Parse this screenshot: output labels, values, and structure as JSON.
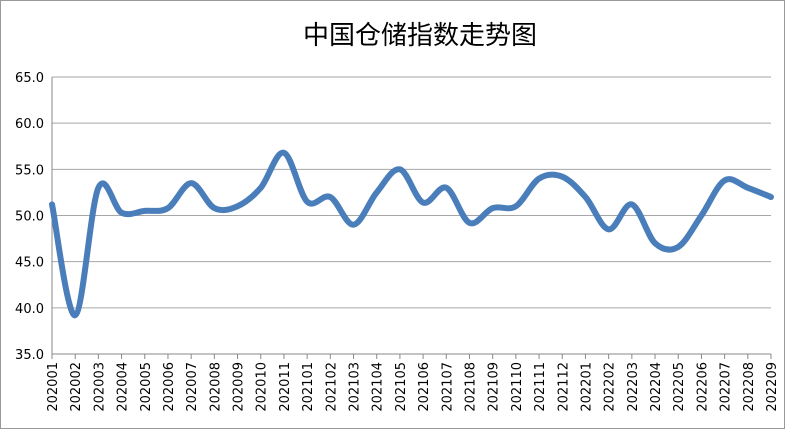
{
  "chart_data": {
    "type": "line",
    "title": "中国仓储指数走势图",
    "categories": [
      "202001",
      "202002",
      "202003",
      "202004",
      "202005",
      "202006",
      "202007",
      "202008",
      "202009",
      "202010",
      "202011",
      "202101",
      "202102",
      "202103",
      "202104",
      "202105",
      "202106",
      "202107",
      "202108",
      "202109",
      "202110",
      "202111",
      "202112",
      "202201",
      "202202",
      "202203",
      "202204",
      "202205",
      "202206",
      "202207",
      "202208",
      "202209"
    ],
    "series": [
      {
        "color": "#4a7ebb",
        "values": [
          51.2,
          39.2,
          53.0,
          50.3,
          50.5,
          50.8,
          53.5,
          50.8,
          51.0,
          53.0,
          56.8,
          51.5,
          52.0,
          49.0,
          52.5,
          55.0,
          51.4,
          53.0,
          49.2,
          50.8,
          51.0,
          54.0,
          54.2,
          52.0,
          48.5,
          51.2,
          47.0,
          46.6,
          50.0,
          53.8,
          53.0,
          52.0
        ]
      }
    ],
    "ylim": [
      35,
      65
    ],
    "yticks": [
      {
        "value": 35,
        "label": "35.0"
      },
      {
        "value": 40,
        "label": "40.0"
      },
      {
        "value": 45,
        "label": "45.0"
      },
      {
        "value": 50,
        "label": "50.0"
      },
      {
        "value": 55,
        "label": "55.0"
      },
      {
        "value": 60,
        "label": "60.0"
      },
      {
        "value": 65,
        "label": "65.0"
      }
    ],
    "grid": true
  }
}
